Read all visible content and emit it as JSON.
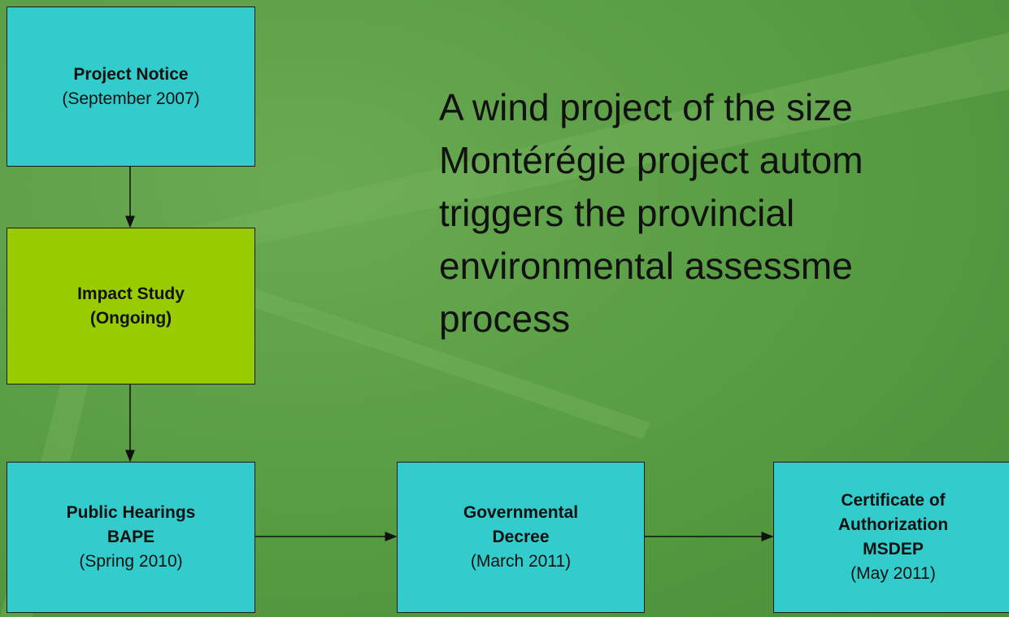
{
  "nodes": [
    {
      "bold": [
        "Project Notice"
      ],
      "plain": [
        "(September 2007)"
      ]
    },
    {
      "bold": [
        "Impact Study",
        "(Ongoing)"
      ]
    },
    {
      "bold": [
        "Public Hearings",
        "BAPE"
      ],
      "plain": [
        "(Spring 2010)"
      ]
    },
    {
      "bold": [
        "Governmental",
        "Decree"
      ],
      "plain": [
        "(March 2011)"
      ]
    },
    {
      "bold": [
        "Certificate of",
        "Authorization",
        "MSDEP"
      ],
      "plain": [
        "(May 2011)"
      ]
    }
  ],
  "statement": [
    "A wind project of the size",
    "Montérégie project autom",
    "triggers the provincial",
    "environmental assessme",
    "process"
  ]
}
